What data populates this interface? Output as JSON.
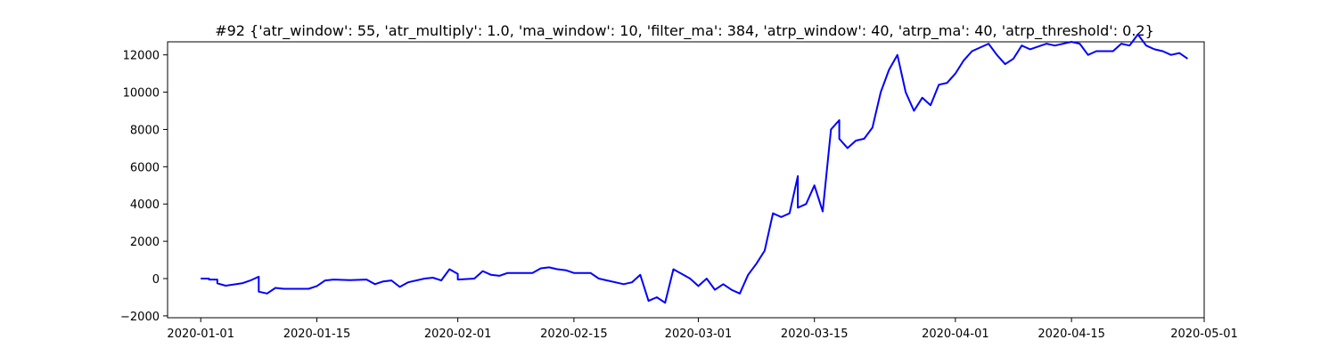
{
  "chart_data": {
    "type": "line",
    "title": "#92 {'atr_window': 55, 'atr_multiply': 1.0, 'ma_window': 10, 'filter_ma': 384, 'atrp_window': 40, 'atrp_ma': 40, 'atrp_threshold': 0.2}",
    "xlabel": "",
    "ylabel": "",
    "x_axis_type": "date",
    "xlim": [
      "2019-12-28",
      "2020-05-01"
    ],
    "ylim": [
      -2100,
      12700
    ],
    "x_ticks": [
      "2020-01-01",
      "2020-01-15",
      "2020-02-01",
      "2020-02-15",
      "2020-03-01",
      "2020-03-15",
      "2020-04-01",
      "2020-04-15",
      "2020-05-01"
    ],
    "y_ticks": [
      -2000,
      0,
      2000,
      4000,
      6000,
      8000,
      10000,
      12000
    ],
    "y_tick_labels": [
      "−2000",
      "0",
      "2000",
      "4000",
      "6000",
      "8000",
      "10000",
      "12000"
    ],
    "grid": false,
    "series": [
      {
        "color": "#0000ff",
        "points": [
          [
            "2020-01-01",
            0
          ],
          [
            "2020-01-02",
            0
          ],
          [
            "2020-01-02",
            -50
          ],
          [
            "2020-01-03",
            -50
          ],
          [
            "2020-01-03",
            -250
          ],
          [
            "2020-01-04",
            -380
          ],
          [
            "2020-01-06",
            -250
          ],
          [
            "2020-01-07",
            -100
          ],
          [
            "2020-01-08",
            100
          ],
          [
            "2020-01-08",
            -700
          ],
          [
            "2020-01-09",
            -800
          ],
          [
            "2020-01-10",
            -500
          ],
          [
            "2020-01-11",
            -550
          ],
          [
            "2020-01-14",
            -550
          ],
          [
            "2020-01-15",
            -400
          ],
          [
            "2020-01-16",
            -100
          ],
          [
            "2020-01-17",
            -50
          ],
          [
            "2020-01-19",
            -80
          ],
          [
            "2020-01-21",
            -50
          ],
          [
            "2020-01-22",
            -300
          ],
          [
            "2020-01-23",
            -150
          ],
          [
            "2020-01-24",
            -100
          ],
          [
            "2020-01-25",
            -450
          ],
          [
            "2020-01-26",
            -200
          ],
          [
            "2020-01-28",
            0
          ],
          [
            "2020-01-29",
            50
          ],
          [
            "2020-01-30",
            -100
          ],
          [
            "2020-01-31",
            500
          ],
          [
            "2020-02-01",
            250
          ],
          [
            "2020-02-01",
            -50
          ],
          [
            "2020-02-03",
            0
          ],
          [
            "2020-02-04",
            400
          ],
          [
            "2020-02-05",
            200
          ],
          [
            "2020-02-06",
            150
          ],
          [
            "2020-02-07",
            300
          ],
          [
            "2020-02-10",
            300
          ],
          [
            "2020-02-11",
            550
          ],
          [
            "2020-02-12",
            600
          ],
          [
            "2020-02-13",
            500
          ],
          [
            "2020-02-14",
            450
          ],
          [
            "2020-02-15",
            300
          ],
          [
            "2020-02-17",
            300
          ],
          [
            "2020-02-18",
            0
          ],
          [
            "2020-02-19",
            -100
          ],
          [
            "2020-02-20",
            -200
          ],
          [
            "2020-02-21",
            -300
          ],
          [
            "2020-02-22",
            -200
          ],
          [
            "2020-02-23",
            200
          ],
          [
            "2020-02-24",
            -1200
          ],
          [
            "2020-02-25",
            -1000
          ],
          [
            "2020-02-26",
            -1300
          ],
          [
            "2020-02-27",
            500
          ],
          [
            "2020-02-29",
            0
          ],
          [
            "2020-03-01",
            -400
          ],
          [
            "2020-03-02",
            0
          ],
          [
            "2020-03-03",
            -600
          ],
          [
            "2020-03-04",
            -300
          ],
          [
            "2020-03-05",
            -600
          ],
          [
            "2020-03-06",
            -800
          ],
          [
            "2020-03-07",
            200
          ],
          [
            "2020-03-08",
            800
          ],
          [
            "2020-03-09",
            1500
          ],
          [
            "2020-03-10",
            3500
          ],
          [
            "2020-03-11",
            3300
          ],
          [
            "2020-03-12",
            3500
          ],
          [
            "2020-03-13",
            5500
          ],
          [
            "2020-03-13",
            3800
          ],
          [
            "2020-03-14",
            4000
          ],
          [
            "2020-03-15",
            5000
          ],
          [
            "2020-03-16",
            3600
          ],
          [
            "2020-03-17",
            8000
          ],
          [
            "2020-03-18",
            8500
          ],
          [
            "2020-03-18",
            7500
          ],
          [
            "2020-03-19",
            7000
          ],
          [
            "2020-03-20",
            7400
          ],
          [
            "2020-03-21",
            7500
          ],
          [
            "2020-03-22",
            8100
          ],
          [
            "2020-03-23",
            10000
          ],
          [
            "2020-03-24",
            11200
          ],
          [
            "2020-03-25",
            12000
          ],
          [
            "2020-03-26",
            10000
          ],
          [
            "2020-03-27",
            9000
          ],
          [
            "2020-03-28",
            9700
          ],
          [
            "2020-03-29",
            9300
          ],
          [
            "2020-03-30",
            10400
          ],
          [
            "2020-03-31",
            10500
          ],
          [
            "2020-04-01",
            11000
          ],
          [
            "2020-04-02",
            11700
          ],
          [
            "2020-04-03",
            12200
          ],
          [
            "2020-04-05",
            12600
          ],
          [
            "2020-04-06",
            12000
          ],
          [
            "2020-04-07",
            11500
          ],
          [
            "2020-04-08",
            11800
          ],
          [
            "2020-04-09",
            12500
          ],
          [
            "2020-04-10",
            12300
          ],
          [
            "2020-04-12",
            12600
          ],
          [
            "2020-04-13",
            12500
          ],
          [
            "2020-04-15",
            12700
          ],
          [
            "2020-04-16",
            12600
          ],
          [
            "2020-04-17",
            12000
          ],
          [
            "2020-04-18",
            12200
          ],
          [
            "2020-04-20",
            12200
          ],
          [
            "2020-04-21",
            12600
          ],
          [
            "2020-04-22",
            12500
          ],
          [
            "2020-04-23",
            13100
          ],
          [
            "2020-04-24",
            12500
          ],
          [
            "2020-04-25",
            12300
          ],
          [
            "2020-04-26",
            12200
          ],
          [
            "2020-04-27",
            12000
          ],
          [
            "2020-04-28",
            12100
          ],
          [
            "2020-04-29",
            11800
          ]
        ]
      }
    ]
  }
}
